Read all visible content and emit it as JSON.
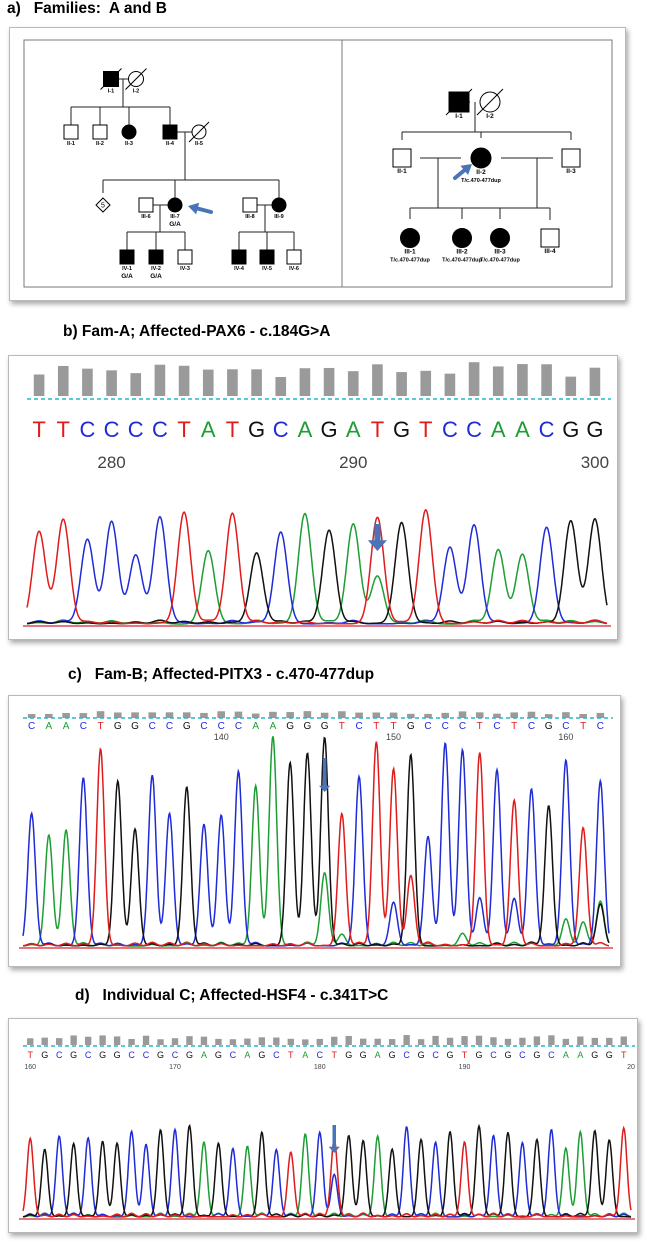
{
  "titles": {
    "a": "a)   Families:  A and B",
    "b": "b) Fam-A; Affected-PAX6 - c.184G>A",
    "c": "c)   Fam-B; Affected-PITX3 - c.470-477dup",
    "d": "d)   Individual C; Affected-HSF4 - c.341T>C"
  },
  "family_a": {
    "individuals": [
      {
        "id": "I-1",
        "sex": "male",
        "affected": true,
        "deceased": true
      },
      {
        "id": "I-2",
        "sex": "female",
        "affected": false,
        "deceased": true
      },
      {
        "id": "II-1",
        "sex": "male",
        "affected": false
      },
      {
        "id": "II-2",
        "sex": "male",
        "affected": false
      },
      {
        "id": "II-3",
        "sex": "female",
        "affected": true
      },
      {
        "id": "II-4",
        "sex": "male",
        "affected": true
      },
      {
        "id": "II-5",
        "sex": "female",
        "affected": false,
        "deceased": true
      },
      {
        "id": "5",
        "sex": "unknown",
        "affected": false,
        "count": "5"
      },
      {
        "id": "III-6",
        "sex": "male",
        "affected": false
      },
      {
        "id": "III-7",
        "sex": "female",
        "affected": true,
        "proband": true,
        "genotype": "G/A"
      },
      {
        "id": "III-8",
        "sex": "male",
        "affected": false
      },
      {
        "id": "III-9",
        "sex": "female",
        "affected": true
      },
      {
        "id": "IV-1",
        "sex": "male",
        "affected": true,
        "genotype": "G/A"
      },
      {
        "id": "IV-2",
        "sex": "male",
        "affected": true,
        "genotype": "G/A"
      },
      {
        "id": "IV-3",
        "sex": "male",
        "affected": false
      },
      {
        "id": "IV-4",
        "sex": "male",
        "affected": true
      },
      {
        "id": "IV-5",
        "sex": "male",
        "affected": true
      },
      {
        "id": "IV-6",
        "sex": "male",
        "affected": false
      }
    ]
  },
  "family_b": {
    "individuals": [
      {
        "id": "I-1",
        "sex": "male",
        "affected": true,
        "deceased": true
      },
      {
        "id": "I-2",
        "sex": "female",
        "affected": false,
        "deceased": true
      },
      {
        "id": "II-1",
        "sex": "male",
        "affected": false
      },
      {
        "id": "II-2",
        "sex": "female",
        "affected": true,
        "proband": true,
        "genotype": "T/c.470-477dup"
      },
      {
        "id": "II-3",
        "sex": "male",
        "affected": false
      },
      {
        "id": "III-1",
        "sex": "female",
        "affected": true,
        "genotype": "T/c.470-477dup"
      },
      {
        "id": "III-2",
        "sex": "female",
        "affected": true,
        "genotype": "T/c.470-477dup"
      },
      {
        "id": "III-3",
        "sex": "female",
        "affected": true,
        "genotype": "T/c.470-477dup"
      },
      {
        "id": "III-4",
        "sex": "male",
        "affected": false
      }
    ]
  },
  "chromatograms": [
    {
      "key": "b",
      "sequence": "TTCCCCTATGCAGATGTCCAACGG",
      "start": 277,
      "tick_labels": [
        "280",
        "290",
        "300"
      ]
    },
    {
      "key": "c",
      "sequence": "CAACTGGCCGCCCAAGGGTCTTGCCCTCTCGCTC",
      "start": 129,
      "tick_labels": [
        "140",
        "150",
        "160"
      ]
    },
    {
      "key": "d",
      "sequence": "TGCGCGGCCGCGAGCAGCTACTGGAGCGCGTGCGCGCAAGGT",
      "start": 160,
      "tick_labels": [
        "160",
        "170",
        "180",
        "190",
        "20"
      ]
    }
  ],
  "colors": {
    "A": "#1d9e34",
    "C": "#1f2bd6",
    "G": "#111111",
    "T": "#e01b1b",
    "arrow": "#4a74b8",
    "ref_line": "#23b9c9",
    "bar": "#9a9a9a"
  }
}
